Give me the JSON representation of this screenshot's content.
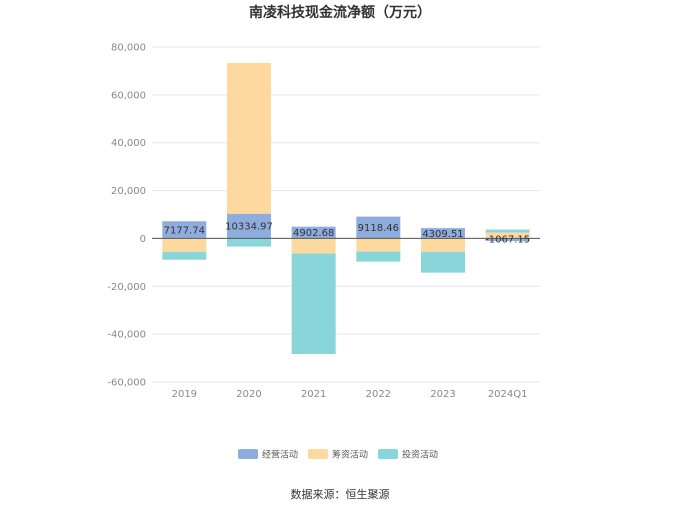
{
  "chart_data": {
    "type": "bar",
    "stacked": true,
    "title": "南凌科技现金流净额（万元）",
    "categories": [
      "2019",
      "2020",
      "2021",
      "2022",
      "2023",
      "2024Q1"
    ],
    "series": [
      {
        "name": "经营活动",
        "color": "#8eacdd",
        "values": [
          7177.74,
          10334.97,
          4902.68,
          9118.46,
          4309.51,
          -1067.15
        ]
      },
      {
        "name": "筹资活动",
        "color": "#fdd9a0",
        "values": [
          -5600,
          63000,
          -6300,
          -5500,
          -5600,
          2500
        ]
      },
      {
        "name": "投资活动",
        "color": "#88d6d9",
        "values": [
          -3300,
          -3400,
          -42000,
          -4200,
          -8700,
          1200
        ]
      }
    ],
    "data_labels": [
      "7177.74",
      "10334.97",
      "4902.68",
      "9118.46",
      "4309.51",
      "-1067.15"
    ],
    "y_ticks": [
      80000,
      60000,
      40000,
      20000,
      0,
      -20000,
      -40000,
      -60000
    ],
    "y_tick_labels": [
      "80,000",
      "60,000",
      "40,000",
      "20,000",
      "0",
      "-20,000",
      "-40,000",
      "-60,000"
    ],
    "ylim": [
      -60000,
      80000
    ],
    "grid": true,
    "legend_position": "bottom"
  },
  "source": "数据来源：恒生聚源"
}
